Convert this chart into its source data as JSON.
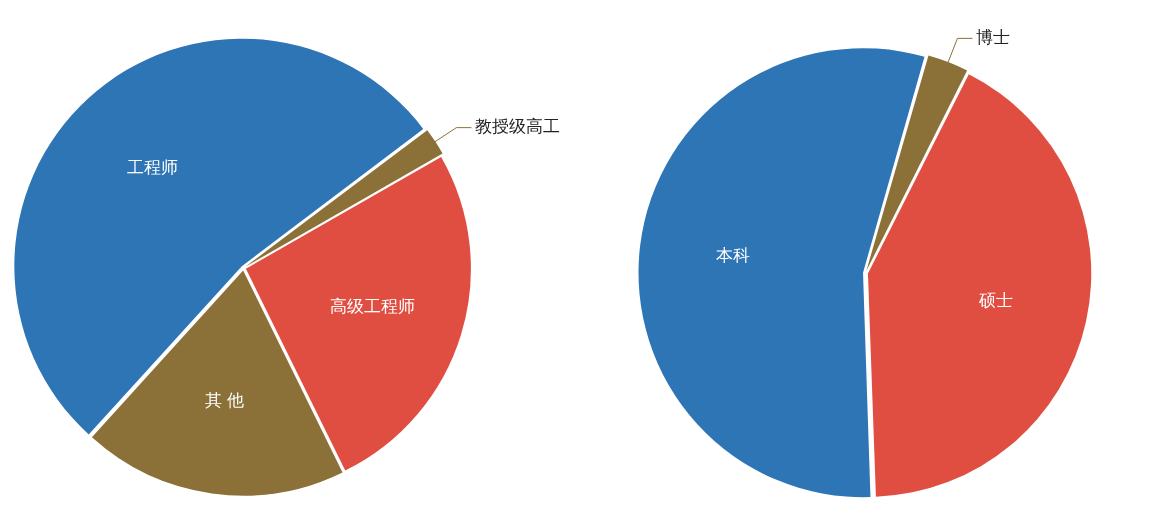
{
  "chart_data": [
    {
      "type": "pie",
      "categories": [
        "教授级高工",
        "高级工程师",
        "其 他",
        "工程师"
      ],
      "values": [
        2,
        26,
        19,
        53
      ],
      "colors": [
        "#8b7138",
        "#e04e42",
        "#8b7138",
        "#2e75b6"
      ]
    },
    {
      "type": "pie",
      "categories": [
        "博士",
        "硕士",
        "本科"
      ],
      "values": [
        3,
        42,
        55
      ],
      "colors": [
        "#8b7138",
        "#e04e42",
        "#2e75b6"
      ]
    }
  ]
}
